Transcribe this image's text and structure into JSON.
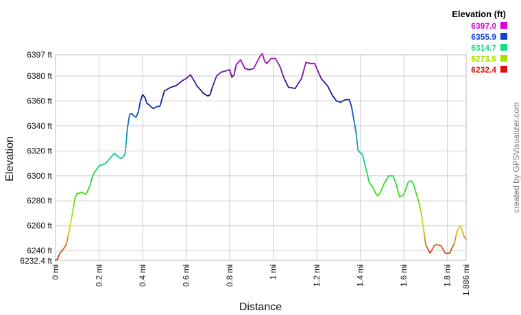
{
  "chart_data": {
    "type": "line",
    "title": "",
    "xlabel": "Distance",
    "ylabel": "Elevation",
    "xlim": [
      0,
      1.886
    ],
    "ylim": [
      6232.4,
      6397
    ],
    "grid": true,
    "x_ticks": [
      {
        "value": 0,
        "label": "0 mi"
      },
      {
        "value": 0.2,
        "label": "0.2 mi"
      },
      {
        "value": 0.4,
        "label": "0.4 mi"
      },
      {
        "value": 0.6,
        "label": "0.6 mi"
      },
      {
        "value": 0.8,
        "label": "0.8 mi"
      },
      {
        "value": 1.0,
        "label": "1 mi"
      },
      {
        "value": 1.2,
        "label": "1.2 mi"
      },
      {
        "value": 1.4,
        "label": "1.4 mi"
      },
      {
        "value": 1.6,
        "label": "1.6 mi"
      },
      {
        "value": 1.8,
        "label": "1.8 mi"
      },
      {
        "value": 1.886,
        "label": "1.886 mi"
      }
    ],
    "y_ticks": [
      {
        "value": 6232.4,
        "label": "6232.4 ft"
      },
      {
        "value": 6240,
        "label": "6240 ft"
      },
      {
        "value": 6260,
        "label": "6260 ft"
      },
      {
        "value": 6280,
        "label": "6280 ft"
      },
      {
        "value": 6300,
        "label": "6300 ft"
      },
      {
        "value": 6320,
        "label": "6320 ft"
      },
      {
        "value": 6340,
        "label": "6340 ft"
      },
      {
        "value": 6360,
        "label": "6360 ft"
      },
      {
        "value": 6380,
        "label": "6380 ft"
      },
      {
        "value": 6397,
        "label": "6397 ft"
      }
    ],
    "legend": {
      "title": "Elevation (ft)",
      "placement": "top-right",
      "entries": [
        {
          "label": "6397.0",
          "color": "#dd00dd"
        },
        {
          "label": "6355.9",
          "color": "#1044cc"
        },
        {
          "label": "6314.7",
          "color": "#11dd88"
        },
        {
          "label": "6273.5",
          "color": "#aadd00"
        },
        {
          "label": "6232.4",
          "color": "#dd1111"
        }
      ]
    },
    "color_scale": [
      {
        "value": 6232.4,
        "color": "#cc1a1a"
      },
      {
        "value": 6260,
        "color": "#dddd11"
      },
      {
        "value": 6285,
        "color": "#44dd11"
      },
      {
        "value": 6315,
        "color": "#11cc99"
      },
      {
        "value": 6345,
        "color": "#1166cc"
      },
      {
        "value": 6365,
        "color": "#101a88"
      },
      {
        "value": 6397,
        "color": "#bb11bb"
      }
    ],
    "series": [
      {
        "x": [
          0,
          0.008,
          0.02,
          0.035,
          0.05,
          0.065,
          0.08,
          0.09,
          0.1,
          0.11,
          0.12,
          0.14,
          0.16,
          0.17,
          0.18,
          0.2,
          0.23,
          0.25,
          0.27,
          0.29,
          0.3,
          0.31,
          0.32,
          0.33,
          0.34,
          0.35,
          0.36,
          0.37,
          0.38,
          0.39,
          0.4,
          0.41,
          0.42,
          0.43,
          0.44,
          0.45,
          0.46,
          0.48,
          0.5,
          0.53,
          0.55,
          0.56,
          0.58,
          0.6,
          0.62,
          0.65,
          0.68,
          0.7,
          0.71,
          0.72,
          0.74,
          0.76,
          0.78,
          0.8,
          0.81,
          0.82,
          0.83,
          0.85,
          0.87,
          0.89,
          0.91,
          0.94,
          0.95,
          0.96,
          0.97,
          0.99,
          1.01,
          1.03,
          1.05,
          1.07,
          1.1,
          1.13,
          1.15,
          1.17,
          1.19,
          1.2,
          1.22,
          1.25,
          1.27,
          1.29,
          1.31,
          1.33,
          1.35,
          1.36,
          1.37,
          1.38,
          1.39,
          1.41,
          1.42,
          1.43,
          1.44,
          1.46,
          1.47,
          1.48,
          1.49,
          1.51,
          1.53,
          1.55,
          1.56,
          1.57,
          1.58,
          1.6,
          1.62,
          1.63,
          1.64,
          1.65,
          1.67,
          1.68,
          1.69,
          1.7,
          1.72,
          1.74,
          1.75,
          1.77,
          1.79,
          1.81,
          1.82,
          1.83,
          1.845,
          1.86,
          1.875,
          1.886
        ],
        "y": [
          6232.4,
          6233,
          6238,
          6241,
          6245,
          6258,
          6272,
          6283,
          6286,
          6286,
          6287,
          6285,
          6293,
          6300,
          6303,
          6308,
          6310,
          6314,
          6318,
          6315,
          6314,
          6315,
          6318,
          6338,
          6349,
          6350,
          6348,
          6347,
          6351,
          6360,
          6365,
          6363,
          6358,
          6357,
          6355,
          6354,
          6355,
          6356,
          6368,
          6371,
          6372,
          6373,
          6376,
          6378,
          6381,
          6372,
          6366,
          6364,
          6365,
          6371,
          6380,
          6383,
          6384,
          6385,
          6379,
          6381,
          6389,
          6393,
          6386,
          6385,
          6386,
          6396,
          6398,
          6392,
          6390,
          6394,
          6394,
          6388,
          6378,
          6371,
          6370,
          6378,
          6391,
          6390,
          6390,
          6386,
          6378,
          6372,
          6365,
          6360,
          6359,
          6361,
          6361,
          6355,
          6345,
          6335,
          6320,
          6317,
          6310,
          6303,
          6295,
          6290,
          6286,
          6284,
          6286,
          6294,
          6300,
          6300,
          6296,
          6290,
          6283,
          6285,
          6295,
          6296,
          6295,
          6290,
          6278,
          6270,
          6258,
          6245,
          6238,
          6244,
          6245,
          6244,
          6238,
          6238,
          6242,
          6245,
          6256,
          6260,
          6252,
          6249
        ]
      }
    ],
    "credit_text": "created by GPSVisualizer.com"
  }
}
